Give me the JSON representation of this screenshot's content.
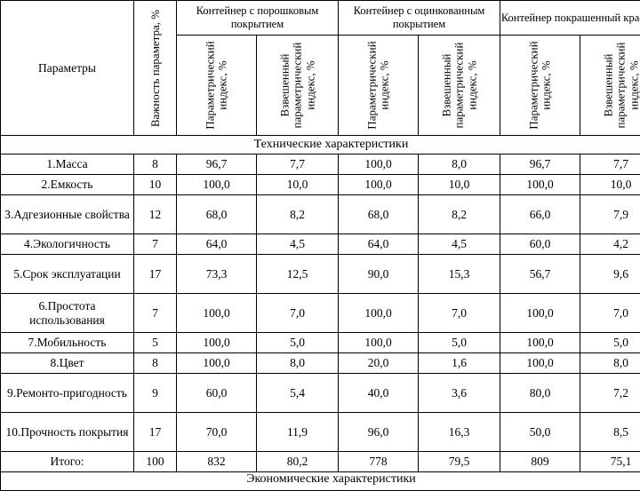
{
  "header": {
    "params": "Параметры",
    "importance": "Важность параметра, %",
    "containers": [
      "Контейнер с порошковым покрытием",
      "Контейнер с оцинкованным покрытием",
      "Контейнер покрашенный краской"
    ],
    "sub_param": "Параметрический индекс, %",
    "sub_weighted": "Взвешенный параметрический индекс, %"
  },
  "section_tech": "Технические характеристики",
  "section_econ": "Экономические характеристики",
  "rows": [
    {
      "name": "1.Масса",
      "w": "8",
      "c": [
        "96,7",
        "7,7",
        "100,0",
        "8,0",
        "96,7",
        "7,7"
      ]
    },
    {
      "name": "2.Емкость",
      "w": "10",
      "c": [
        "100,0",
        "10,0",
        "100,0",
        "10,0",
        "100,0",
        "10,0"
      ]
    },
    {
      "name": "3.Адгезионные свойства",
      "w": "12",
      "c": [
        "68,0",
        "8,2",
        "68,0",
        "8,2",
        "66,0",
        "7,9"
      ]
    },
    {
      "name": "4.Экологичность",
      "w": "7",
      "c": [
        "64,0",
        "4,5",
        "64,0",
        "4,5",
        "60,0",
        "4,2"
      ]
    },
    {
      "name": "5.Срок эксплуатации",
      "w": "17",
      "c": [
        "73,3",
        "12,5",
        "90,0",
        "15,3",
        "56,7",
        "9,6"
      ]
    },
    {
      "name": "6.Простота использования",
      "w": "7",
      "c": [
        "100,0",
        "7,0",
        "100,0",
        "7,0",
        "100,0",
        "7,0"
      ]
    },
    {
      "name": "7.Мобильность",
      "w": "5",
      "c": [
        "100,0",
        "5,0",
        "100,0",
        "5,0",
        "100,0",
        "5,0"
      ]
    },
    {
      "name": "8.Цвет",
      "w": "8",
      "c": [
        "100,0",
        "8,0",
        "20,0",
        "1,6",
        "100,0",
        "8,0"
      ]
    },
    {
      "name": "9.Ремонто-пригодность",
      "w": "9",
      "c": [
        "60,0",
        "5,4",
        "40,0",
        "3,6",
        "80,0",
        "7,2"
      ]
    },
    {
      "name": "10.Прочность покрытия",
      "w": "17",
      "c": [
        "70,0",
        "11,9",
        "96,0",
        "16,3",
        "50,0",
        "8,5"
      ]
    }
  ],
  "total": {
    "name": "Итого:",
    "w": "100",
    "c": [
      "832",
      "80,2",
      "778",
      "79,5",
      "809",
      "75,1"
    ]
  }
}
